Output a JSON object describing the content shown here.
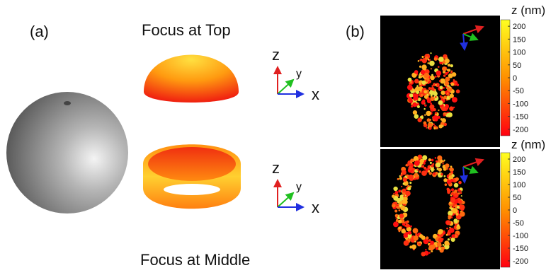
{
  "panel_a": {
    "label": "(a)",
    "top_title": "Focus at Top",
    "bottom_title": "Focus at Middle",
    "axes_top": {
      "z": "z",
      "y": "y",
      "x": "x"
    },
    "axes_bottom": {
      "z": "z",
      "y": "y",
      "x": "x"
    }
  },
  "panel_b": {
    "label": "(b)",
    "colorbars": [
      {
        "title": "z (nm)",
        "lim": [
          -225,
          225
        ],
        "ticks": [
          200,
          150,
          100,
          50,
          0,
          -50,
          -100,
          -150,
          -200
        ]
      },
      {
        "title": "z (nm)",
        "lim": [
          -225,
          225
        ],
        "ticks": [
          200,
          150,
          100,
          50,
          0,
          -50,
          -100,
          -150,
          -200
        ]
      }
    ]
  }
}
